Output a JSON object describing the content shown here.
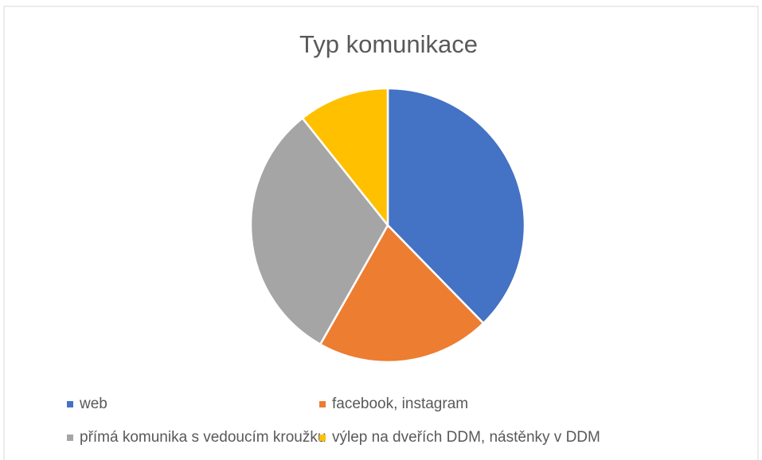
{
  "chart_data": {
    "type": "pie",
    "title": "Typ komunikace",
    "categories": [
      "web",
      "facebook, instagram",
      "přímá komunika s vedoucím kroužku",
      "výlep na dveřích DDM, nástěnky v DDM"
    ],
    "values": [
      37.7,
      20.5,
      31.1,
      10.7
    ],
    "colors": [
      "#4472c4",
      "#ed7d31",
      "#a5a5a5",
      "#ffc000"
    ],
    "legend": "bottom"
  }
}
